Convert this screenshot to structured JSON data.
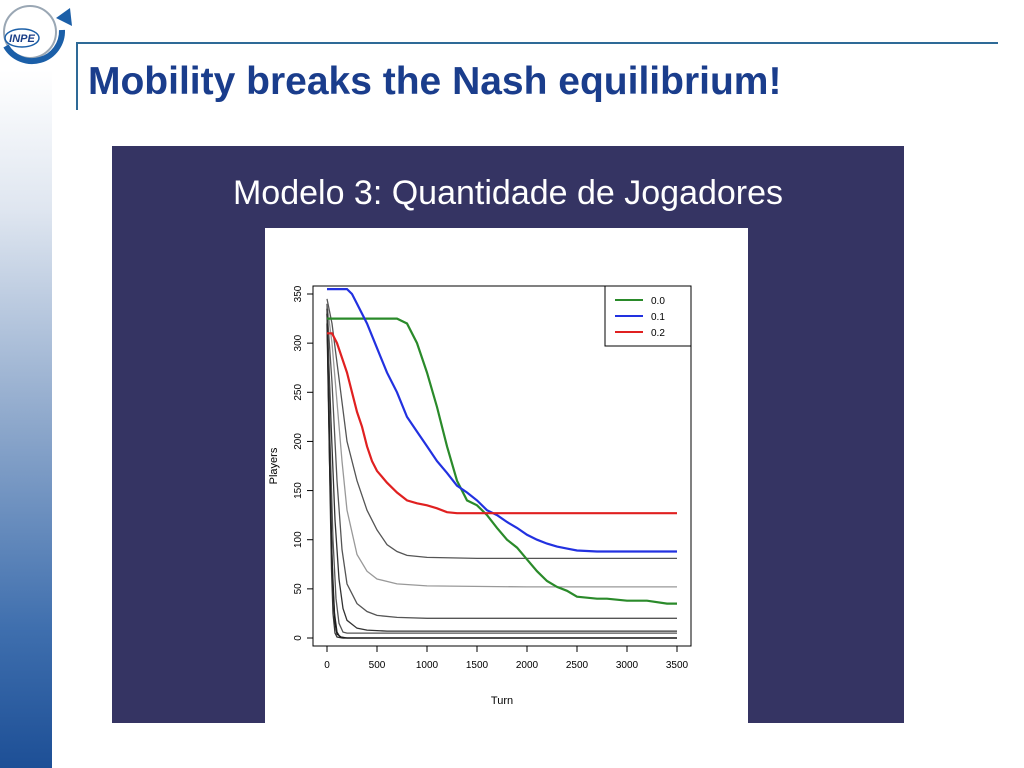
{
  "slide": {
    "title": "Mobility breaks the Nash equilibrium!",
    "logo_text": "INPE",
    "colors": {
      "title": "#1a3d8c",
      "figure_bg": "#353463",
      "rule": "#2e6a97"
    }
  },
  "chart_data": {
    "type": "line",
    "title": "Modelo 3: Quantidade de Jogadores",
    "xlabel": "Turn",
    "ylabel": "Players",
    "xlim": [
      0,
      3500
    ],
    "ylim": [
      0,
      350
    ],
    "xticks": [
      0,
      500,
      1000,
      1500,
      2000,
      2500,
      3000,
      3500
    ],
    "yticks": [
      0,
      50,
      100,
      150,
      200,
      250,
      300,
      350
    ],
    "grid": false,
    "legend_position": "top-right",
    "series": [
      {
        "name": "0.0",
        "color": "#2a8a2a",
        "points": [
          [
            0,
            325
          ],
          [
            200,
            325
          ],
          [
            400,
            325
          ],
          [
            700,
            325
          ],
          [
            800,
            320
          ],
          [
            900,
            300
          ],
          [
            1000,
            270
          ],
          [
            1100,
            235
          ],
          [
            1200,
            195
          ],
          [
            1300,
            160
          ],
          [
            1400,
            140
          ],
          [
            1500,
            135
          ],
          [
            1600,
            125
          ],
          [
            1700,
            112
          ],
          [
            1800,
            100
          ],
          [
            1900,
            92
          ],
          [
            2000,
            80
          ],
          [
            2100,
            68
          ],
          [
            2200,
            58
          ],
          [
            2300,
            52
          ],
          [
            2400,
            48
          ],
          [
            2500,
            42
          ],
          [
            2600,
            41
          ],
          [
            2700,
            40
          ],
          [
            2800,
            40
          ],
          [
            2900,
            39
          ],
          [
            3000,
            38
          ],
          [
            3200,
            38
          ],
          [
            3400,
            35
          ],
          [
            3500,
            35
          ]
        ]
      },
      {
        "name": "0.1",
        "color": "#2231e0",
        "points": [
          [
            0,
            355
          ],
          [
            200,
            355
          ],
          [
            250,
            350
          ],
          [
            300,
            340
          ],
          [
            400,
            320
          ],
          [
            500,
            295
          ],
          [
            600,
            270
          ],
          [
            700,
            250
          ],
          [
            800,
            225
          ],
          [
            900,
            210
          ],
          [
            1000,
            195
          ],
          [
            1100,
            180
          ],
          [
            1200,
            168
          ],
          [
            1300,
            155
          ],
          [
            1400,
            148
          ],
          [
            1500,
            140
          ],
          [
            1600,
            130
          ],
          [
            1700,
            125
          ],
          [
            1800,
            118
          ],
          [
            1900,
            112
          ],
          [
            2000,
            105
          ],
          [
            2100,
            100
          ],
          [
            2200,
            96
          ],
          [
            2300,
            93
          ],
          [
            2400,
            91
          ],
          [
            2500,
            89
          ],
          [
            2700,
            88
          ],
          [
            3000,
            88
          ],
          [
            3500,
            88
          ]
        ]
      },
      {
        "name": "0.2",
        "color": "#e02020",
        "points": [
          [
            0,
            310
          ],
          [
            50,
            310
          ],
          [
            100,
            300
          ],
          [
            150,
            285
          ],
          [
            200,
            270
          ],
          [
            250,
            250
          ],
          [
            300,
            230
          ],
          [
            350,
            215
          ],
          [
            400,
            195
          ],
          [
            450,
            180
          ],
          [
            500,
            170
          ],
          [
            600,
            158
          ],
          [
            700,
            148
          ],
          [
            800,
            140
          ],
          [
            900,
            137
          ],
          [
            1000,
            135
          ],
          [
            1100,
            132
          ],
          [
            1200,
            128
          ],
          [
            1300,
            127
          ],
          [
            1500,
            127
          ],
          [
            2000,
            127
          ],
          [
            2500,
            127
          ],
          [
            3000,
            127
          ],
          [
            3500,
            127
          ]
        ]
      }
    ],
    "unlabeled_series": [
      {
        "color": "#555555",
        "points": [
          [
            0,
            345
          ],
          [
            50,
            320
          ],
          [
            100,
            280
          ],
          [
            150,
            240
          ],
          [
            200,
            200
          ],
          [
            300,
            160
          ],
          [
            400,
            130
          ],
          [
            500,
            110
          ],
          [
            600,
            95
          ],
          [
            700,
            88
          ],
          [
            800,
            84
          ],
          [
            1000,
            82
          ],
          [
            1500,
            81
          ],
          [
            2000,
            81
          ],
          [
            3500,
            81
          ]
        ]
      },
      {
        "color": "#999999",
        "points": [
          [
            0,
            340
          ],
          [
            50,
            300
          ],
          [
            100,
            240
          ],
          [
            150,
            180
          ],
          [
            200,
            130
          ],
          [
            300,
            85
          ],
          [
            400,
            68
          ],
          [
            500,
            60
          ],
          [
            700,
            55
          ],
          [
            1000,
            53
          ],
          [
            2000,
            52
          ],
          [
            3500,
            52
          ]
        ]
      },
      {
        "color": "#555555",
        "points": [
          [
            0,
            335
          ],
          [
            50,
            260
          ],
          [
            100,
            160
          ],
          [
            150,
            90
          ],
          [
            200,
            55
          ],
          [
            300,
            35
          ],
          [
            400,
            27
          ],
          [
            500,
            23
          ],
          [
            700,
            21
          ],
          [
            1000,
            20
          ],
          [
            3500,
            20
          ]
        ]
      },
      {
        "color": "#333333",
        "points": [
          [
            0,
            330
          ],
          [
            40,
            220
          ],
          [
            80,
            120
          ],
          [
            120,
            60
          ],
          [
            160,
            30
          ],
          [
            200,
            18
          ],
          [
            300,
            10
          ],
          [
            400,
            8
          ],
          [
            600,
            7
          ],
          [
            3500,
            7
          ]
        ]
      },
      {
        "color": "#555555",
        "points": [
          [
            0,
            340
          ],
          [
            30,
            200
          ],
          [
            60,
            100
          ],
          [
            90,
            40
          ],
          [
            120,
            15
          ],
          [
            160,
            6
          ],
          [
            200,
            5
          ],
          [
            3500,
            5
          ]
        ]
      },
      {
        "color": "#111111",
        "points": [
          [
            0,
            330
          ],
          [
            20,
            220
          ],
          [
            40,
            120
          ],
          [
            60,
            50
          ],
          [
            80,
            15
          ],
          [
            100,
            4
          ],
          [
            140,
            1
          ],
          [
            200,
            0
          ],
          [
            3500,
            0
          ]
        ]
      },
      {
        "color": "#333333",
        "points": [
          [
            0,
            335
          ],
          [
            15,
            250
          ],
          [
            30,
            150
          ],
          [
            45,
            70
          ],
          [
            60,
            25
          ],
          [
            80,
            5
          ],
          [
            100,
            1
          ],
          [
            150,
            0
          ],
          [
            3500,
            0
          ]
        ]
      },
      {
        "color": "#222222",
        "points": [
          [
            0,
            320
          ],
          [
            25,
            180
          ],
          [
            50,
            80
          ],
          [
            75,
            25
          ],
          [
            100,
            6
          ],
          [
            130,
            1
          ],
          [
            160,
            0
          ],
          [
            3500,
            0
          ]
        ]
      }
    ]
  }
}
